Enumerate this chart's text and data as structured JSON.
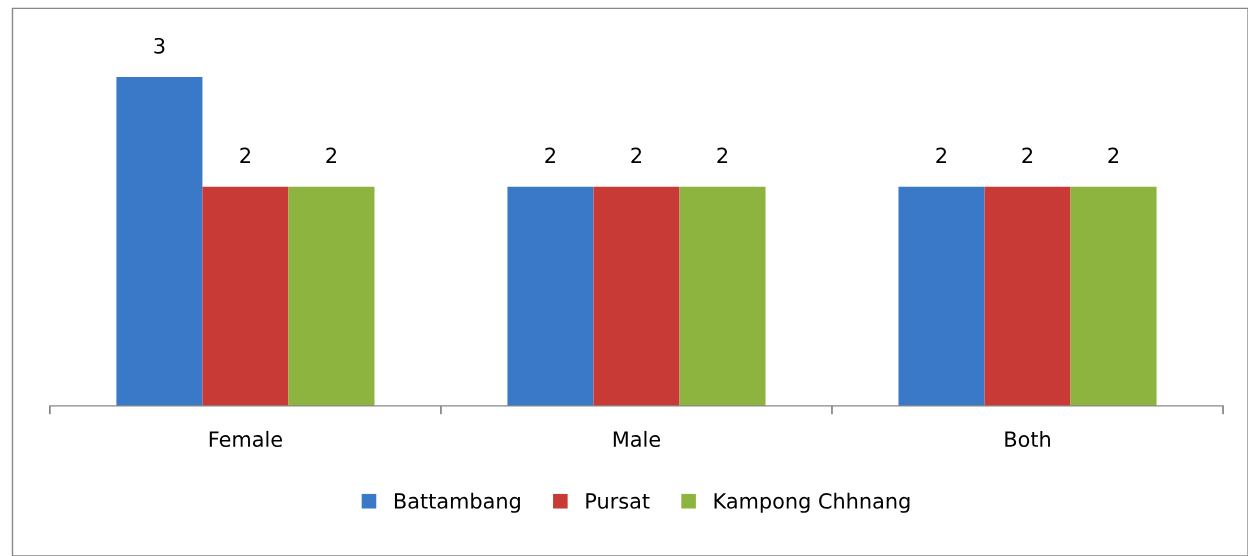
{
  "chart_data": {
    "type": "bar",
    "categories": [
      "Female",
      "Male",
      "Both"
    ],
    "series": [
      {
        "name": "Battambang",
        "color": "#3a78c8",
        "values": [
          3,
          2,
          2
        ]
      },
      {
        "name": "Pursat",
        "color": "#c83a36",
        "values": [
          2,
          2,
          2
        ]
      },
      {
        "name": "Kampong Chhnang",
        "color": "#8db43e",
        "values": [
          2,
          2,
          2
        ]
      }
    ],
    "data_labels": true,
    "legend": "bottom",
    "grid": false,
    "tick_labels": "x"
  }
}
